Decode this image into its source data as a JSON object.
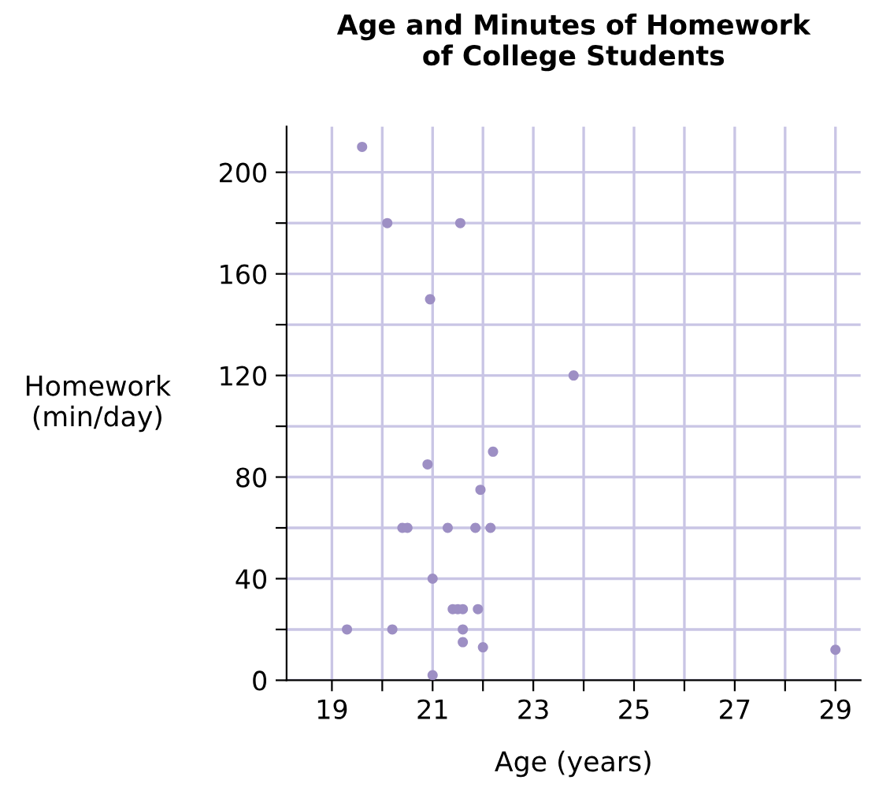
{
  "chart_data": {
    "type": "scatter",
    "title": "Age and Minutes of Homework\nof College Students",
    "xlabel": "Age (years)",
    "ylabel": "Homework\n(min/day)",
    "x": [
      19.6,
      20.1,
      21.55,
      20.95,
      23.8,
      22.2,
      20.9,
      21.95,
      20.4,
      20.5,
      21.3,
      21.85,
      22.15,
      21.0,
      21.4,
      21.5,
      21.6,
      21.9,
      19.3,
      20.2,
      21.6,
      21.6,
      22.0,
      21.0,
      29.0
    ],
    "values": [
      210,
      180,
      180,
      150,
      120,
      90,
      85,
      75,
      60,
      60,
      60,
      60,
      60,
      40,
      28,
      28,
      28,
      28,
      20,
      20,
      20,
      15,
      13,
      2,
      12
    ],
    "color": "#9d8fc4",
    "marker": "circle",
    "grid": true,
    "xlim": [
      18.1,
      29.5
    ],
    "ylim": [
      0,
      218
    ],
    "xticks": [
      19,
      {
        "value": 20,
        "label": null
      },
      21,
      {
        "value": 22,
        "label": null
      },
      23,
      {
        "value": 24,
        "label": null
      },
      25,
      {
        "value": 26,
        "label": null
      },
      27,
      {
        "value": 28,
        "label": null
      },
      29
    ],
    "yticks": [
      0,
      {
        "value": 20,
        "label": null
      },
      40,
      {
        "value": 60,
        "label": null
      },
      80,
      {
        "value": 100,
        "label": null
      },
      120,
      {
        "value": 140,
        "label": null
      },
      160,
      {
        "value": 180,
        "label": null
      },
      200
    ]
  }
}
